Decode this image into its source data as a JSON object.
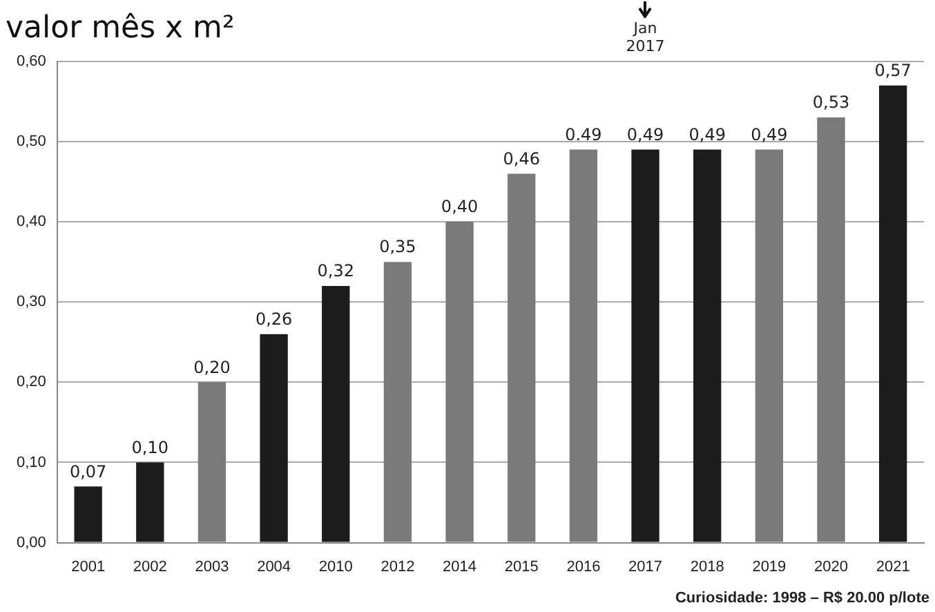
{
  "chart_data": {
    "type": "bar",
    "title": "valor mês x m²",
    "categories": [
      "2001",
      "2002",
      "2003",
      "2004",
      "2010",
      "2012",
      "2014",
      "2015",
      "2016",
      "2017",
      "2018",
      "2019",
      "2020",
      "2021"
    ],
    "values": [
      0.07,
      0.1,
      0.2,
      0.26,
      0.32,
      0.35,
      0.4,
      0.46,
      0.49,
      0.49,
      0.49,
      0.49,
      0.53,
      0.57
    ],
    "colors": [
      "#1c1c1c",
      "#1c1c1c",
      "#7a7a7a",
      "#1c1c1c",
      "#1c1c1c",
      "#7a7a7a",
      "#7a7a7a",
      "#7a7a7a",
      "#7a7a7a",
      "#1c1c1c",
      "#1c1c1c",
      "#7a7a7a",
      "#7a7a7a",
      "#1c1c1c"
    ],
    "value_labels": [
      "0,07",
      "0,10",
      "0,20",
      "0,26",
      "0,32",
      "0,35",
      "0,40",
      "0,46",
      "0.49",
      "0,49",
      "0,49",
      "0,49",
      "0,53",
      "0,57"
    ],
    "ylim": [
      0,
      0.6
    ],
    "yticks": [
      {
        "value": 0,
        "label": "0,00"
      },
      {
        "value": 0.1,
        "label": "0,10"
      },
      {
        "value": 0.2,
        "label": "0,20"
      },
      {
        "value": 0.3,
        "label": "0,30"
      },
      {
        "value": 0.4,
        "label": "0,40"
      },
      {
        "value": 0.5,
        "label": "0,50"
      },
      {
        "value": 0.6,
        "label": "0,60"
      }
    ],
    "grid": "y",
    "legend": false,
    "annotations": [
      {
        "text": "Jan 2017",
        "x": "2017"
      },
      "Curiosidade: 1998 – R$ 20.00 p/lote"
    ]
  }
}
